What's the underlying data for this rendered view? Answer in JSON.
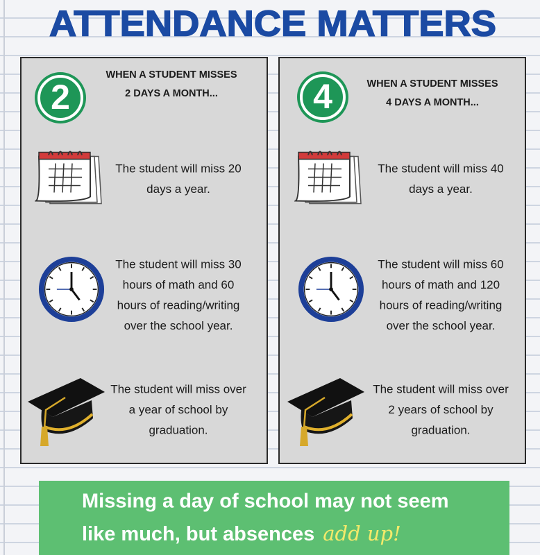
{
  "title": "ATTENDANCE MATTERS",
  "panels": [
    {
      "number": "2",
      "heading": [
        "WHEN A STUDENT MISSES",
        "2 DAYS A MONTH..."
      ],
      "items": [
        [
          "The student will miss 20",
          "days a year."
        ],
        [
          "The student will miss 30",
          "hours of math and 60",
          "hours of reading/writing",
          "over the school year."
        ],
        [
          "The student will miss over",
          "a year of school by",
          "graduation."
        ]
      ]
    },
    {
      "number": "4",
      "heading": [
        "WHEN A STUDENT MISSES",
        "4 DAYS A MONTH..."
      ],
      "items": [
        [
          "The student will miss 40",
          "days a year."
        ],
        [
          "The student will miss 60",
          "hours of math and 120",
          "hours of reading/writing",
          "over the school year."
        ],
        [
          "The student will miss over",
          "2 years of school by",
          "graduation."
        ]
      ]
    }
  ],
  "footer": {
    "lines": [
      "Missing a day of school may not seem",
      "like much, but absences"
    ],
    "highlight": "add up!"
  }
}
